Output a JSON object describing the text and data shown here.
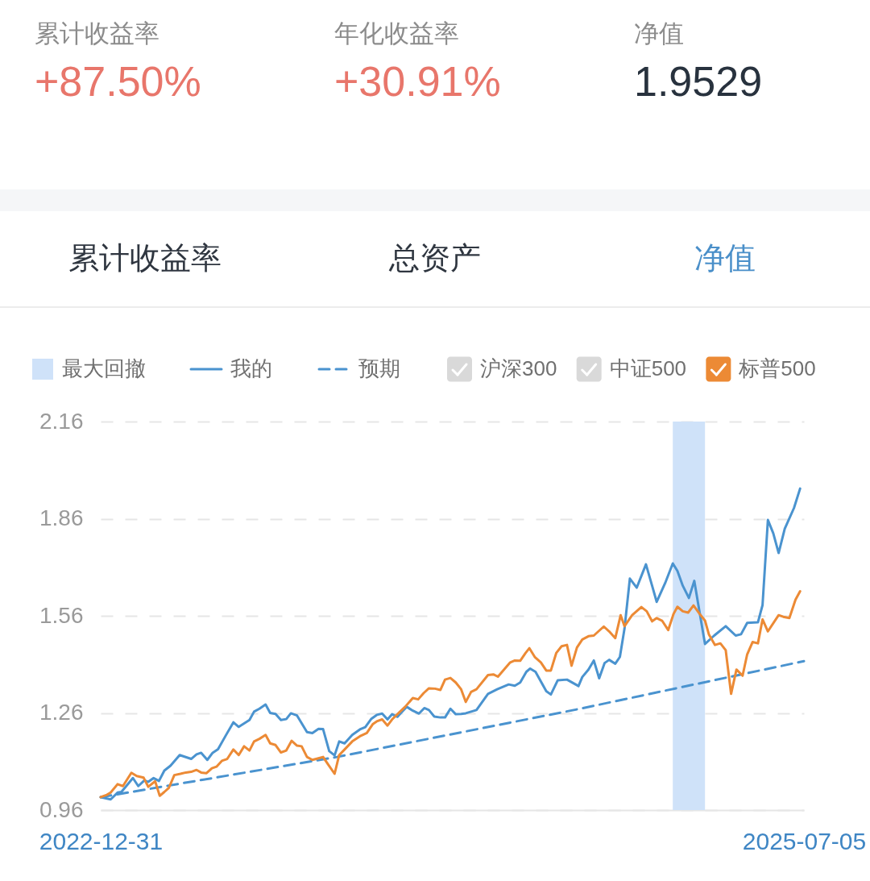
{
  "chart_data": [
    {
      "type": "other",
      "categories": [
        "累计收益率",
        "年化收益率",
        "净值"
      ],
      "value_labels": [
        "+87.50%",
        "+30.91%",
        "1.9529"
      ],
      "colors": [
        "#e8766b",
        "#e8766b",
        "#28323e"
      ]
    },
    {
      "type": "line",
      "title": "净值",
      "annotations": [
        "累计收益率",
        "总资产"
      ],
      "xlim": [
        "2022-12-31",
        "2025-07-05"
      ],
      "xticks": [
        "2022-12-31",
        "2025-07-05"
      ],
      "ylim": [
        0.96,
        2.16
      ],
      "yticks": [
        0.96,
        1.26,
        1.56,
        1.86,
        2.16
      ],
      "grid": "y",
      "legend": "top",
      "bands": [
        {
          "axis": "x",
          "from": "2025-01-15",
          "to": "2025-02-26",
          "label": "最大回撤",
          "color": "#cfe2f9"
        }
      ],
      "series": [
        {
          "name": "我的",
          "color": "#4a93cf",
          "line_style": "solid",
          "x": [
            "2022-12-31",
            "2023-01-13",
            "2023-01-22",
            "2023-01-27",
            "2023-02-11",
            "2023-02-18",
            "2023-02-26",
            "2023-03-03",
            "2023-03-10",
            "2023-03-17",
            "2023-03-24",
            "2023-04-01",
            "2023-04-13",
            "2023-04-28",
            "2023-05-05",
            "2023-05-11",
            "2023-05-19",
            "2023-05-26",
            "2023-06-02",
            "2023-06-12",
            "2023-06-22",
            "2023-06-29",
            "2023-07-13",
            "2023-07-19",
            "2023-07-26",
            "2023-08-03",
            "2023-08-09",
            "2023-08-16",
            "2023-08-23",
            "2023-08-30",
            "2023-09-05",
            "2023-09-13",
            "2023-09-26",
            "2023-10-03",
            "2023-10-11",
            "2023-10-17",
            "2023-10-25",
            "2023-11-01",
            "2023-11-07",
            "2023-11-14",
            "2023-11-24",
            "2023-12-04",
            "2023-12-11",
            "2023-12-19",
            "2023-12-26",
            "2024-01-02",
            "2024-01-09",
            "2024-01-15",
            "2024-01-22",
            "2024-01-27",
            "2024-02-03",
            "2024-02-11",
            "2024-02-19",
            "2024-02-26",
            "2024-03-03",
            "2024-03-10",
            "2024-03-18",
            "2024-03-24",
            "2024-03-31",
            "2024-04-07",
            "2024-04-14",
            "2024-04-20",
            "2024-05-04",
            "2024-05-19",
            "2024-05-31",
            "2024-06-15",
            "2024-06-23",
            "2024-06-30",
            "2024-07-08",
            "2024-07-13",
            "2024-07-20",
            "2024-08-03",
            "2024-08-09",
            "2024-08-18",
            "2024-08-30",
            "2024-09-14",
            "2024-09-19",
            "2024-09-27",
            "2024-10-04",
            "2024-10-11",
            "2024-10-18",
            "2024-10-24",
            "2024-11-01",
            "2024-11-07",
            "2024-11-13",
            "2024-11-20",
            "2024-11-29",
            "2024-12-11",
            "2024-12-19",
            "2024-12-25",
            "2025-01-05",
            "2025-01-15",
            "2025-01-21",
            "2025-01-28",
            "2025-02-05",
            "2025-02-12",
            "2025-02-19",
            "2025-02-26",
            "2025-03-10",
            "2025-03-25",
            "2025-04-07",
            "2025-04-14",
            "2025-04-22",
            "2025-05-06",
            "2025-05-12",
            "2025-05-19",
            "2025-05-26",
            "2025-06-02",
            "2025-06-10",
            "2025-06-22",
            "2025-06-30"
          ],
          "values": [
            1.0,
            0.993,
            1.014,
            1.016,
            1.059,
            1.034,
            1.052,
            1.047,
            1.059,
            1.05,
            1.082,
            1.097,
            1.13,
            1.118,
            1.132,
            1.137,
            1.115,
            1.137,
            1.148,
            1.19,
            1.231,
            1.217,
            1.238,
            1.264,
            1.273,
            1.286,
            1.26,
            1.257,
            1.238,
            1.241,
            1.259,
            1.252,
            1.201,
            1.198,
            1.211,
            1.21,
            1.142,
            1.129,
            1.172,
            1.166,
            1.192,
            1.209,
            1.216,
            1.242,
            1.254,
            1.258,
            1.24,
            1.256,
            1.248,
            1.261,
            1.279,
            1.267,
            1.258,
            1.275,
            1.269,
            1.249,
            1.246,
            1.246,
            1.273,
            1.256,
            1.257,
            1.259,
            1.269,
            1.319,
            1.333,
            1.348,
            1.344,
            1.354,
            1.387,
            1.397,
            1.387,
            1.327,
            1.317,
            1.361,
            1.363,
            1.343,
            1.371,
            1.394,
            1.422,
            1.367,
            1.414,
            1.424,
            1.412,
            1.433,
            1.52,
            1.675,
            1.647,
            1.719,
            1.653,
            1.603,
            1.661,
            1.722,
            1.699,
            1.653,
            1.615,
            1.668,
            1.57,
            1.473,
            1.499,
            1.528,
            1.499,
            1.503,
            1.538,
            1.54,
            1.593,
            1.856,
            1.815,
            1.754,
            1.829,
            1.893,
            1.953
          ]
        },
        {
          "name": "预期",
          "color": "#4a93cf",
          "line_style": "dashed",
          "x": [
            "2022-12-31",
            "2023-11-04",
            "2024-09-12",
            "2025-07-05"
          ],
          "values": [
            1.0,
            1.124,
            1.271,
            1.42
          ]
        },
        {
          "name": "沪深300",
          "color": "#d9d9d9"
        },
        {
          "name": "中证500",
          "color": "#d9d9d9"
        },
        {
          "name": "标普500",
          "color": "#ec8a35",
          "x": [
            "2022-12-31",
            "2023-01-08",
            "2023-01-13",
            "2023-01-22",
            "2023-01-29",
            "2023-02-09",
            "2023-02-16",
            "2023-02-25",
            "2023-03-03",
            "2023-03-12",
            "2023-03-18",
            "2023-03-24",
            "2023-03-30",
            "2023-04-06",
            "2023-04-14",
            "2023-04-21",
            "2023-04-28",
            "2023-05-05",
            "2023-05-11",
            "2023-05-18",
            "2023-05-25",
            "2023-05-31",
            "2023-06-07",
            "2023-06-14",
            "2023-06-22",
            "2023-06-29",
            "2023-07-06",
            "2023-07-13",
            "2023-07-19",
            "2023-07-26",
            "2023-08-03",
            "2023-08-09",
            "2023-08-16",
            "2023-08-23",
            "2023-08-30",
            "2023-09-06",
            "2023-09-13",
            "2023-09-19",
            "2023-09-26",
            "2023-10-03",
            "2023-10-11",
            "2023-10-17",
            "2023-10-23",
            "2023-11-01",
            "2023-11-07",
            "2023-11-14",
            "2023-11-24",
            "2023-12-04",
            "2023-12-13",
            "2023-12-21",
            "2023-12-26",
            "2024-01-02",
            "2024-01-09",
            "2024-01-15",
            "2024-01-24",
            "2024-02-01",
            "2024-02-11",
            "2024-02-18",
            "2024-02-25",
            "2024-03-03",
            "2024-03-11",
            "2024-03-18",
            "2024-03-24",
            "2024-03-31",
            "2024-04-07",
            "2024-04-14",
            "2024-04-20",
            "2024-04-27",
            "2024-05-04",
            "2024-05-19",
            "2024-05-26",
            "2024-06-01",
            "2024-06-10",
            "2024-06-17",
            "2024-06-23",
            "2024-06-30",
            "2024-07-07",
            "2024-07-12",
            "2024-07-19",
            "2024-07-27",
            "2024-08-03",
            "2024-08-09",
            "2024-08-16",
            "2024-08-23",
            "2024-08-30",
            "2024-09-05",
            "2024-09-12",
            "2024-09-19",
            "2024-09-27",
            "2024-10-04",
            "2024-10-17",
            "2024-10-24",
            "2024-11-01",
            "2024-11-08",
            "2024-11-13",
            "2024-11-23",
            "2024-12-05",
            "2024-12-12",
            "2024-12-19",
            "2024-12-25",
            "2025-01-01",
            "2025-01-09",
            "2025-01-16",
            "2025-01-21",
            "2025-01-28",
            "2025-02-04",
            "2025-02-11",
            "2025-02-19",
            "2025-02-26",
            "2025-03-03",
            "2025-03-11",
            "2025-03-18",
            "2025-03-25",
            "2025-04-01",
            "2025-04-08",
            "2025-04-16",
            "2025-04-22",
            "2025-04-29",
            "2025-05-06",
            "2025-05-12",
            "2025-05-19",
            "2025-06-02",
            "2025-06-08",
            "2025-06-16",
            "2025-06-24",
            "2025-06-30"
          ],
          "values": [
            1.0,
            1.007,
            1.014,
            1.04,
            1.034,
            1.075,
            1.065,
            1.06,
            1.032,
            1.049,
            1.004,
            1.016,
            1.029,
            1.068,
            1.072,
            1.076,
            1.078,
            1.084,
            1.076,
            1.074,
            1.089,
            1.094,
            1.112,
            1.118,
            1.147,
            1.13,
            1.157,
            1.144,
            1.172,
            1.18,
            1.192,
            1.166,
            1.161,
            1.138,
            1.144,
            1.174,
            1.159,
            1.157,
            1.124,
            1.115,
            1.12,
            1.124,
            1.103,
            1.072,
            1.13,
            1.147,
            1.172,
            1.188,
            1.198,
            1.226,
            1.234,
            1.24,
            1.221,
            1.24,
            1.261,
            1.279,
            1.306,
            1.302,
            1.321,
            1.336,
            1.335,
            1.331,
            1.363,
            1.368,
            1.354,
            1.333,
            1.294,
            1.325,
            1.333,
            1.377,
            1.379,
            1.372,
            1.397,
            1.416,
            1.422,
            1.421,
            1.445,
            1.46,
            1.433,
            1.416,
            1.391,
            1.391,
            1.445,
            1.466,
            1.47,
            1.406,
            1.462,
            1.487,
            1.497,
            1.499,
            1.527,
            1.512,
            1.491,
            1.562,
            1.528,
            1.562,
            1.587,
            1.574,
            1.543,
            1.553,
            1.545,
            1.516,
            1.566,
            1.588,
            1.574,
            1.57,
            1.592,
            1.566,
            1.545,
            1.503,
            1.47,
            1.475,
            1.454,
            1.319,
            1.394,
            1.375,
            1.441,
            1.479,
            1.475,
            1.549,
            1.512,
            1.562,
            1.557,
            1.553,
            1.61,
            1.636
          ]
        }
      ]
    }
  ]
}
